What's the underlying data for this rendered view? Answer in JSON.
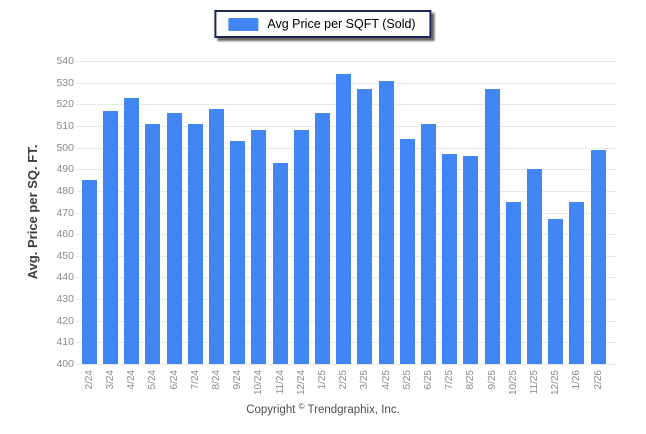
{
  "legend": {
    "label": "Avg Price per SQFT (Sold)",
    "swatch_color": "#4285f4"
  },
  "y_axis_title": "Avg. Price per SQ. FT.",
  "footer": {
    "prefix": "Copyright ",
    "symbol": "©",
    "suffix": " Trendgraphix, Inc."
  },
  "colors": {
    "bar": "#4285f4",
    "gridline": "#e9e9e9",
    "tick_text": "#8a8a8a",
    "legend_border": "#1c2653"
  },
  "chart_data": {
    "type": "bar",
    "title": "",
    "xlabel": "",
    "ylabel": "Avg. Price per SQ. FT.",
    "series_name": "Avg Price per SQFT (Sold)",
    "ylim": [
      400,
      540
    ],
    "yticks": [
      540,
      530,
      520,
      510,
      500,
      490,
      480,
      470,
      460,
      450,
      440,
      430,
      420,
      410,
      400
    ],
    "grid": true,
    "legend_position": "top-center",
    "categories": [
      "2/24",
      "3/24",
      "4/24",
      "5/24",
      "6/24",
      "7/24",
      "8/24",
      "9/24",
      "10/24",
      "11/24",
      "12/24",
      "1/25",
      "2/25",
      "3/25",
      "4/25",
      "5/25",
      "6/25",
      "7/25",
      "8/25",
      "9/25",
      "10/25",
      "11/25",
      "12/25",
      "1/26",
      "2/26"
    ],
    "values": [
      485,
      517,
      523,
      511,
      516,
      511,
      518,
      503,
      508,
      493,
      508,
      516,
      534,
      527,
      531,
      504,
      511,
      497,
      496,
      527,
      475,
      490,
      467,
      475,
      499
    ]
  }
}
